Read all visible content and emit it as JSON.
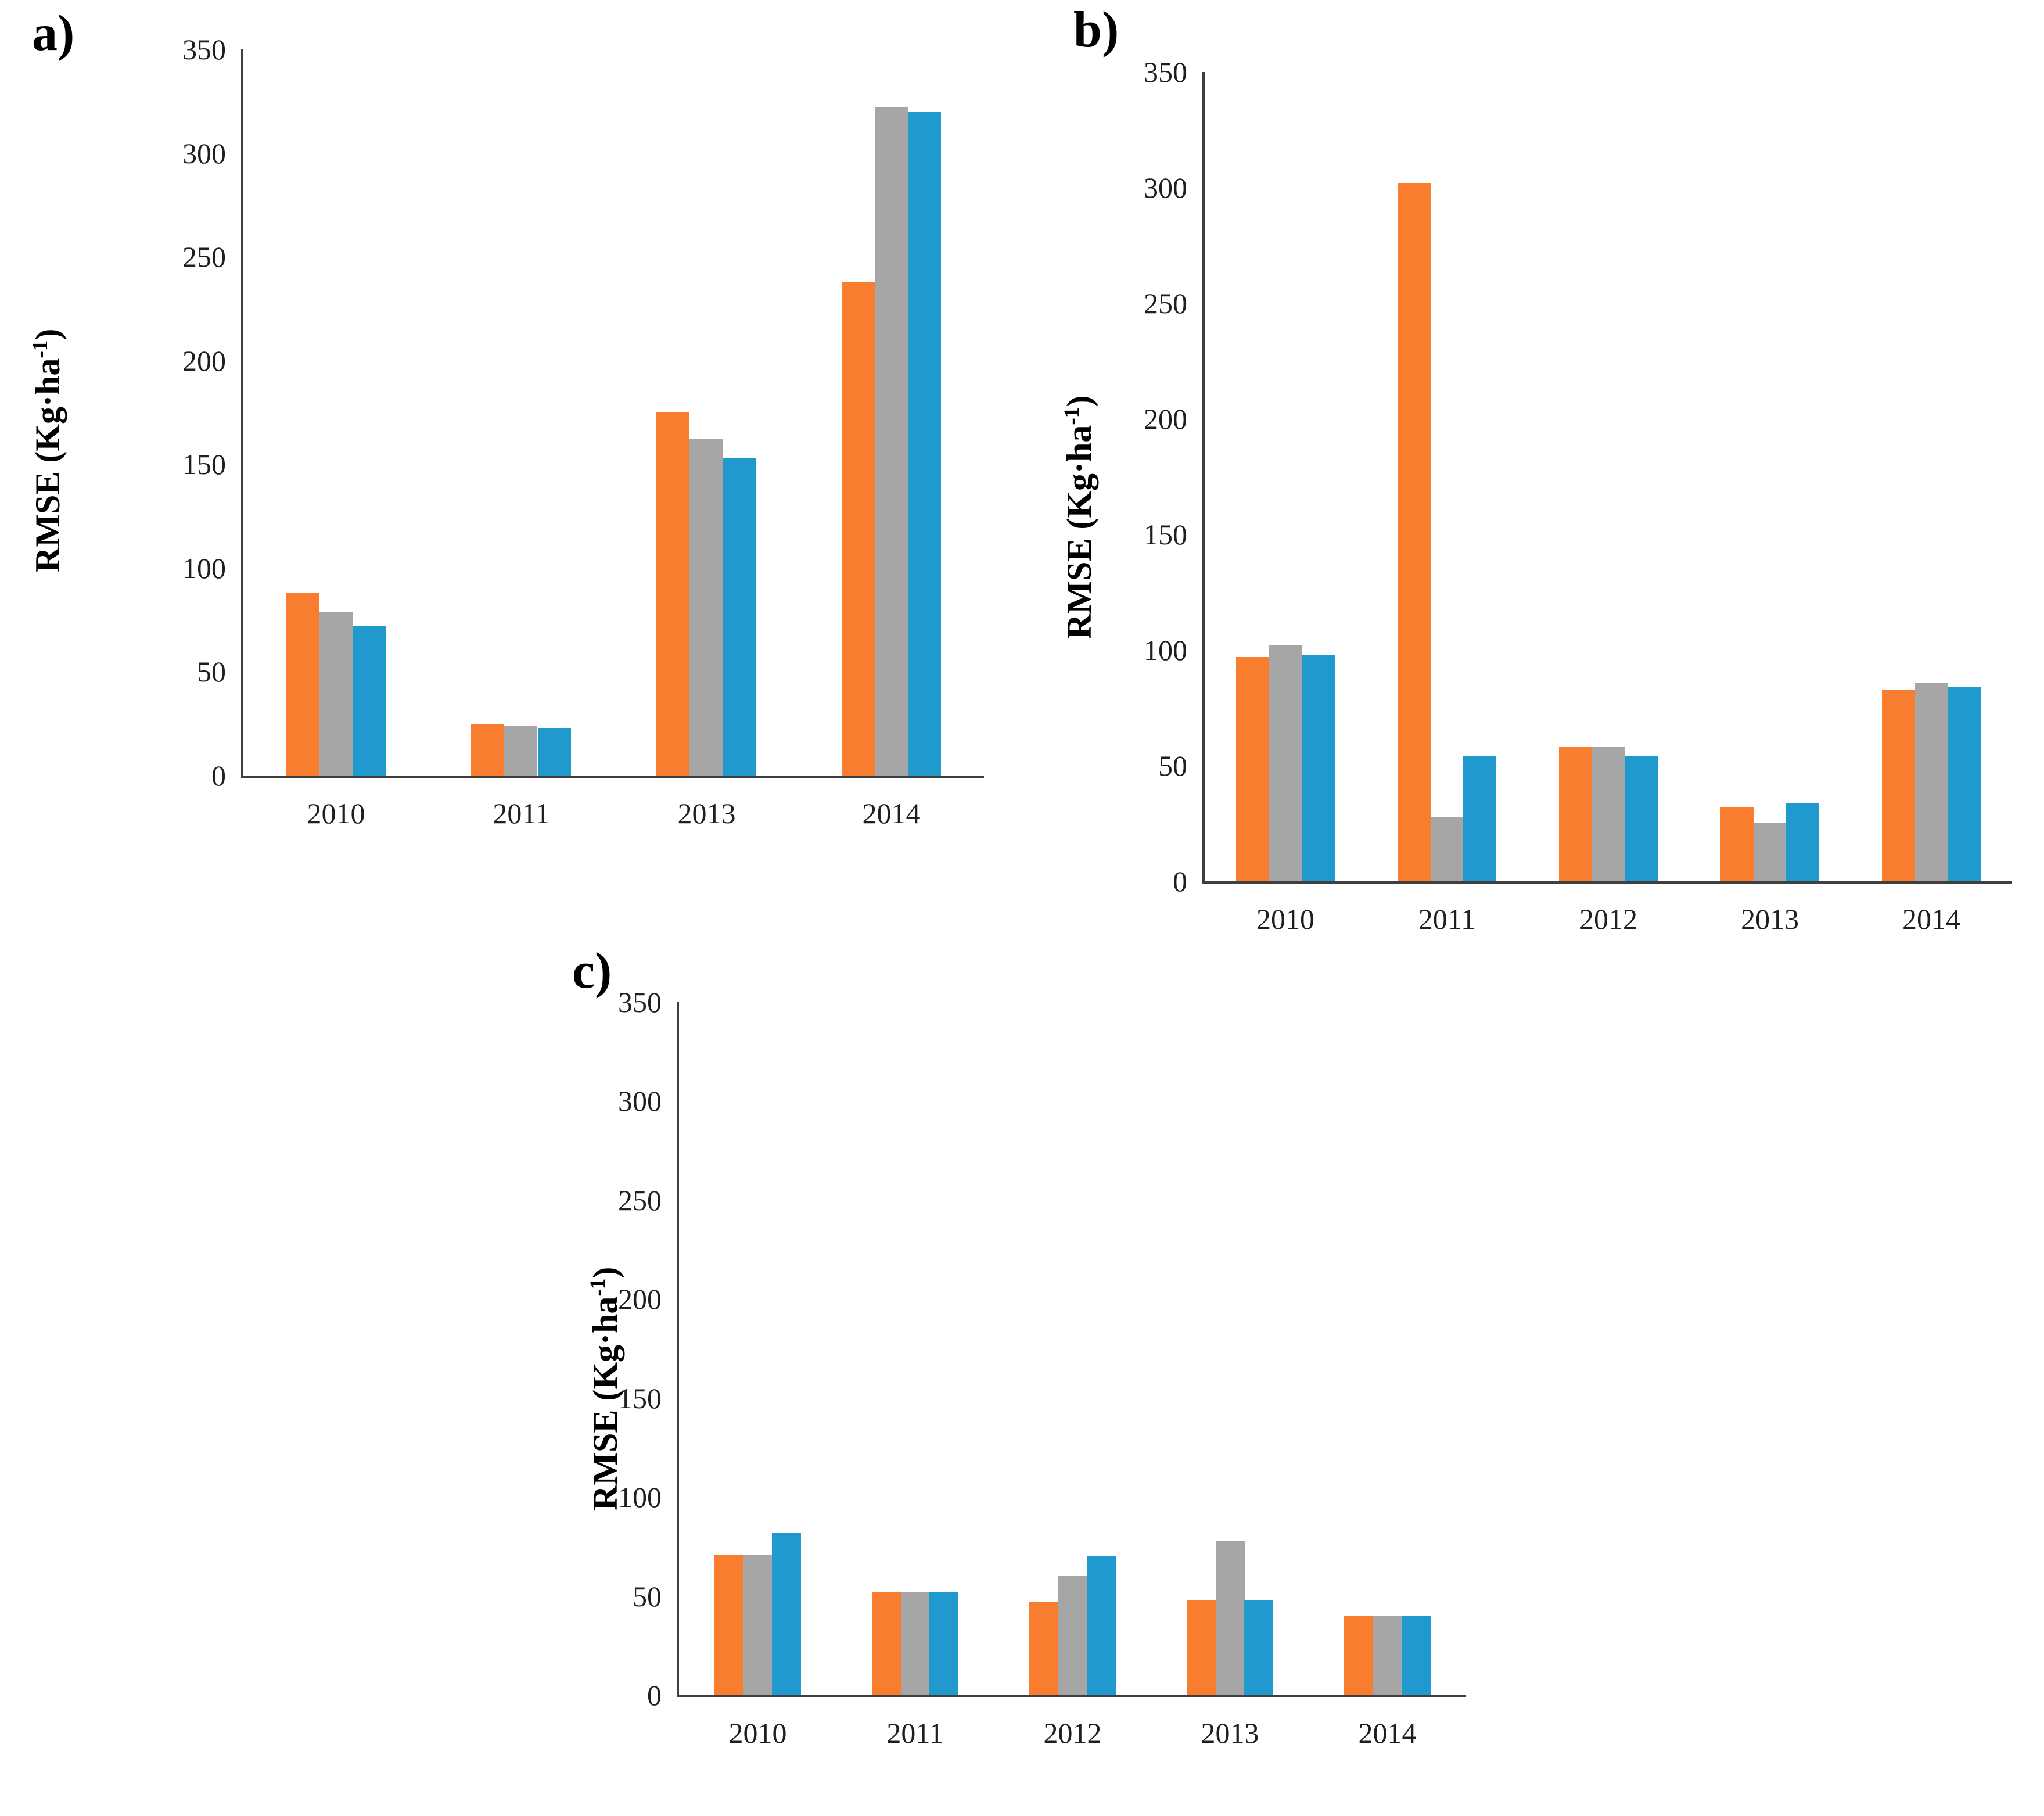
{
  "figure": {
    "background": "#ffffff",
    "axis_color": "#3f3f3f",
    "text_color": "#1f1f1f"
  },
  "y_axis_label": {
    "full": "RMSE (Kg·ha⁻¹)",
    "prefix": "RMSE (Kg·ha",
    "sup": "-1",
    "suffix": ")"
  },
  "series_colors": {
    "orange": "#F97D2E",
    "gray": "#A6A6A6",
    "blue": "#2099CF"
  },
  "chart_data": [
    {
      "type": "bar",
      "panel_label": "a)",
      "title": "",
      "xlabel": "",
      "ylabel": "RMSE (Kg·ha⁻¹)",
      "ylim": [
        0,
        350
      ],
      "yticks": [
        0,
        50,
        100,
        150,
        200,
        250,
        300,
        350
      ],
      "grid": false,
      "legend": "none",
      "categories": [
        "2010",
        "2011",
        "2013",
        "2014"
      ],
      "series": [
        {
          "name": "orange",
          "color": "#F97D2E",
          "values": [
            88,
            25,
            175,
            238
          ]
        },
        {
          "name": "gray",
          "color": "#A6A6A6",
          "values": [
            79,
            24,
            162,
            322
          ]
        },
        {
          "name": "blue",
          "color": "#2099CF",
          "values": [
            72,
            23,
            153,
            320
          ]
        }
      ]
    },
    {
      "type": "bar",
      "panel_label": "b)",
      "title": "",
      "xlabel": "",
      "ylabel": "RMSE (Kg·ha⁻¹)",
      "ylim": [
        0,
        350
      ],
      "yticks": [
        0,
        50,
        100,
        150,
        200,
        250,
        300,
        350
      ],
      "grid": false,
      "legend": "none",
      "categories": [
        "2010",
        "2011",
        "2012",
        "2013",
        "2014"
      ],
      "series": [
        {
          "name": "orange",
          "color": "#F97D2E",
          "values": [
            97,
            302,
            58,
            32,
            83
          ]
        },
        {
          "name": "gray",
          "color": "#A6A6A6",
          "values": [
            102,
            28,
            58,
            25,
            86
          ]
        },
        {
          "name": "blue",
          "color": "#2099CF",
          "values": [
            98,
            54,
            54,
            34,
            84
          ]
        }
      ]
    },
    {
      "type": "bar",
      "panel_label": "c)",
      "title": "",
      "xlabel": "",
      "ylabel": "RMSE (Kg·ha⁻¹)",
      "ylim": [
        0,
        350
      ],
      "yticks": [
        0,
        50,
        100,
        150,
        200,
        250,
        300,
        350
      ],
      "grid": false,
      "legend": "none",
      "categories": [
        "2010",
        "2011",
        "2012",
        "2013",
        "2014"
      ],
      "series": [
        {
          "name": "orange",
          "color": "#F97D2E",
          "values": [
            71,
            52,
            47,
            48,
            40
          ]
        },
        {
          "name": "gray",
          "color": "#A6A6A6",
          "values": [
            71,
            52,
            60,
            78,
            40
          ]
        },
        {
          "name": "blue",
          "color": "#2099CF",
          "values": [
            82,
            52,
            70,
            48,
            40
          ]
        }
      ]
    }
  ]
}
